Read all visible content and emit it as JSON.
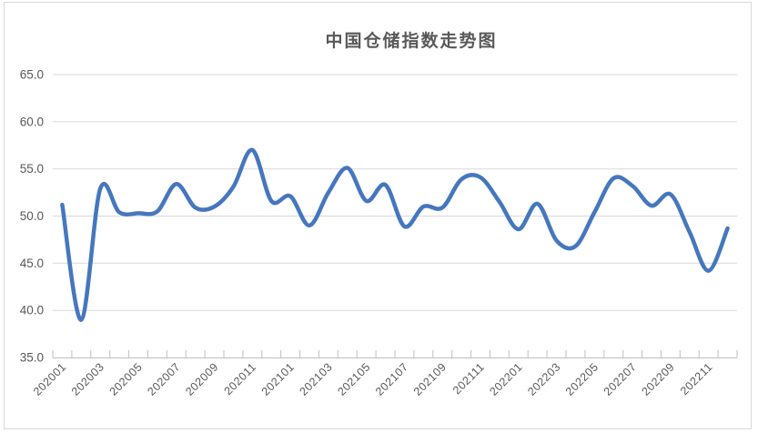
{
  "chart_data": {
    "type": "line",
    "title": "中国仓储指数走势图",
    "x": [
      "202001",
      "202002",
      "202003",
      "202004",
      "202005",
      "202006",
      "202007",
      "202008",
      "202009",
      "202010",
      "202011",
      "202012",
      "202101",
      "202102",
      "202103",
      "202104",
      "202105",
      "202106",
      "202107",
      "202108",
      "202109",
      "202110",
      "202111",
      "202112",
      "202201",
      "202202",
      "202203",
      "202204",
      "202205",
      "202206",
      "202207",
      "202208",
      "202209",
      "202210",
      "202211",
      "202212"
    ],
    "values": [
      51.2,
      39.0,
      52.9,
      50.4,
      50.3,
      50.5,
      53.4,
      50.9,
      51.0,
      53.1,
      57.0,
      51.6,
      52.1,
      49.0,
      52.5,
      55.1,
      51.6,
      53.3,
      48.9,
      51.0,
      50.9,
      53.9,
      54.1,
      51.5,
      48.6,
      51.3,
      47.4,
      46.8,
      50.4,
      54.0,
      53.2,
      51.1,
      52.3,
      48.3,
      44.2,
      48.7
    ],
    "ylim": [
      35,
      65
    ],
    "y_ticks": [
      "35.0",
      "40.0",
      "45.0",
      "50.0",
      "55.0",
      "60.0",
      "65.0"
    ],
    "x_label_interval": 2,
    "x_label_rotation_deg": 45,
    "grid": true,
    "legend": "none",
    "xlabel": "",
    "ylabel": ""
  },
  "colors": {
    "line": "#4577be",
    "gridline": "#d9d9d9",
    "axis_line": "#bfbfbf",
    "tick_mark": "#bfbfbf",
    "axis_label": "#595959",
    "title": "#595959",
    "chart_border": "#d9d9d9",
    "background": "#ffffff"
  }
}
